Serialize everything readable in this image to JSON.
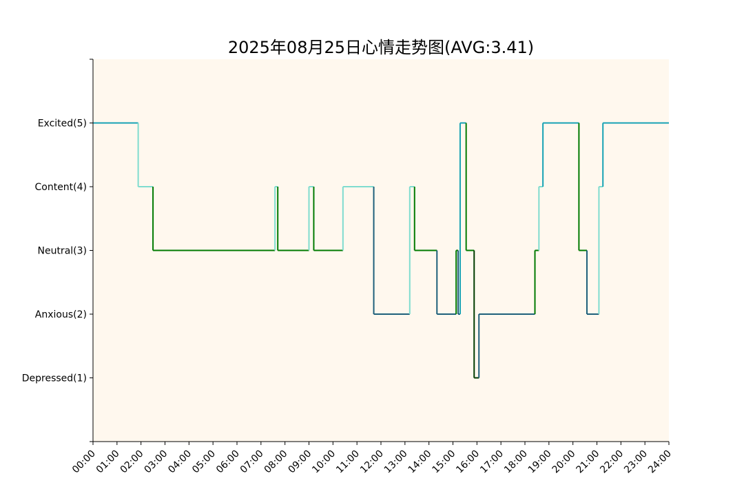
{
  "chart_data": {
    "type": "line",
    "title": "2025年08月25日心情走势图(AVG:3.41)",
    "xlabel": "",
    "ylabel": "",
    "xlim": [
      "00:00",
      "24:00"
    ],
    "ylim": [
      0,
      6
    ],
    "x_ticks": [
      "00:00",
      "01:00",
      "02:00",
      "03:00",
      "04:00",
      "05:00",
      "06:00",
      "07:00",
      "08:00",
      "09:00",
      "10:00",
      "11:00",
      "12:00",
      "13:00",
      "14:00",
      "15:00",
      "16:00",
      "17:00",
      "18:00",
      "19:00",
      "20:00",
      "21:00",
      "22:00",
      "23:00",
      "24:00"
    ],
    "y_ticks": [
      {
        "value": 1,
        "label": "Depressed(1)"
      },
      {
        "value": 2,
        "label": "Anxious(2)"
      },
      {
        "value": 3,
        "label": "Neutral(3)"
      },
      {
        "value": 4,
        "label": "Content(4)"
      },
      {
        "value": 5,
        "label": "Excited(5)"
      }
    ],
    "grid": false,
    "background_color": "#fff8ee",
    "step_points": [
      [
        "00:00",
        5
      ],
      [
        "01:53",
        4
      ],
      [
        "02:30",
        3
      ],
      [
        "07:35",
        4
      ],
      [
        "07:42",
        3
      ],
      [
        "09:00",
        4
      ],
      [
        "09:12",
        3
      ],
      [
        "10:25",
        4
      ],
      [
        "11:42",
        2
      ],
      [
        "13:12",
        4
      ],
      [
        "13:24",
        3
      ],
      [
        "14:20",
        2
      ],
      [
        "15:08",
        3
      ],
      [
        "15:13",
        2
      ],
      [
        "15:18",
        5
      ],
      [
        "15:33",
        3
      ],
      [
        "15:53",
        1
      ],
      [
        "16:05",
        2
      ],
      [
        "18:25",
        3
      ],
      [
        "18:35",
        4
      ],
      [
        "18:45",
        5
      ],
      [
        "20:15",
        3
      ],
      [
        "20:35",
        2
      ],
      [
        "21:05",
        4
      ],
      [
        "21:15",
        5
      ],
      [
        "24:00",
        5
      ]
    ],
    "colors": {
      "1": "#003b00",
      "2": "#1d5f7a",
      "3": "#007a00",
      "4": "#7fdccf",
      "5": "#17a2b4"
    }
  }
}
